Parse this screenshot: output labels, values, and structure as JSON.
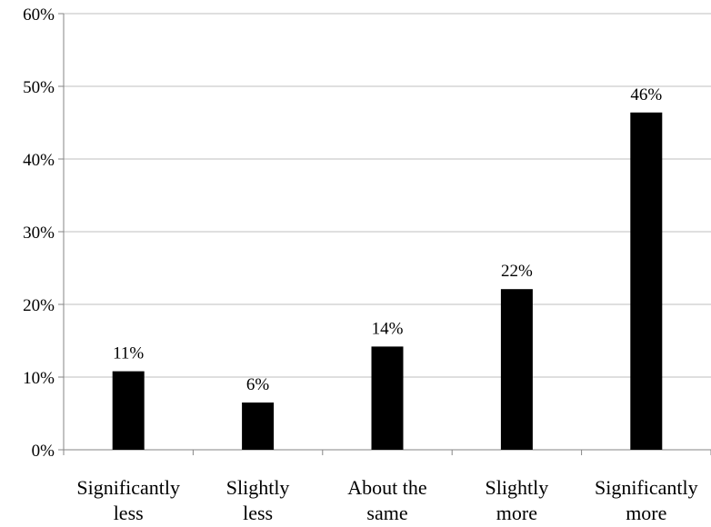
{
  "chart_data": {
    "type": "bar",
    "title": "",
    "xlabel": "",
    "ylabel": "",
    "categories": [
      [
        "Significantly",
        "less"
      ],
      [
        "Slightly",
        "less"
      ],
      [
        "About the",
        "same"
      ],
      [
        "Slightly",
        "more"
      ],
      [
        "Significantly",
        "more"
      ]
    ],
    "values": [
      10.8,
      6.5,
      14.2,
      22.1,
      46.4
    ],
    "data_labels": [
      "11%",
      "6%",
      "14%",
      "22%",
      "46%"
    ],
    "ylim": [
      0,
      60
    ],
    "yticks": [
      0,
      10,
      20,
      30,
      40,
      50,
      60
    ],
    "ytick_labels": [
      "0%",
      "10%",
      "20%",
      "30%",
      "40%",
      "50%",
      "60%"
    ],
    "grid": true,
    "legend": "none",
    "colors": {
      "bar": "#000000",
      "grid": "#bfbfbf",
      "axis": "#868686"
    }
  }
}
